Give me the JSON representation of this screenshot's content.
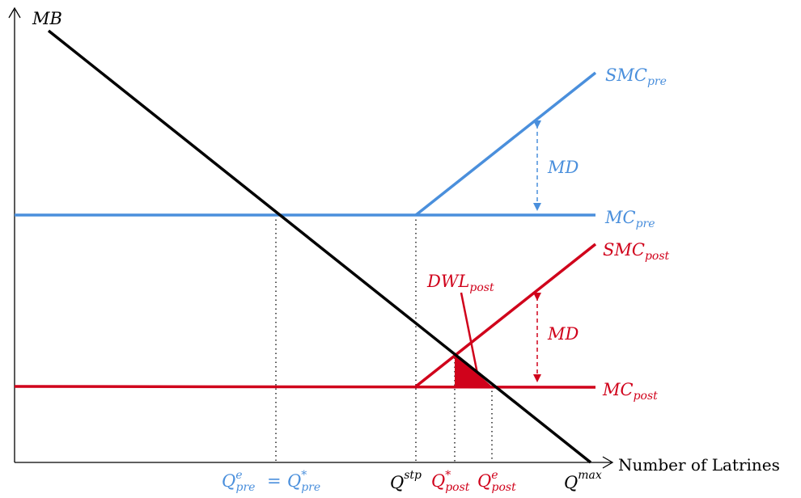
{
  "colors": {
    "pre": "#4a8fdc",
    "post": "#d0021b",
    "demand": "#000000",
    "axis": "#000000"
  },
  "axes": {
    "y_label": "MB",
    "x_label": "Number of  Latrines"
  },
  "curves": {
    "smc_pre": {
      "base": "SMC",
      "sub": "pre"
    },
    "mc_pre": {
      "base": "MC",
      "sub": "pre"
    },
    "smc_post": {
      "base": "SMC",
      "sub": "post"
    },
    "mc_post": {
      "base": "MC",
      "sub": "post"
    },
    "md_pre": "MD",
    "md_post": "MD",
    "dwl": {
      "base": "DWL",
      "sub": "post"
    }
  },
  "x_ticks": {
    "q_pre_e": {
      "base": "Q",
      "sup": "e",
      "sub": "pre"
    },
    "equals": "=",
    "q_pre_star": {
      "base": "Q",
      "sup": "*",
      "sub": "pre"
    },
    "q_stp": {
      "base": "Q",
      "sup": "stp"
    },
    "q_post_star": {
      "base": "Q",
      "sup": "*",
      "sub": "post"
    },
    "q_post_e": {
      "base": "Q",
      "sup": "e",
      "sub": "post"
    },
    "q_max": {
      "base": "Q",
      "sup": "max"
    }
  }
}
